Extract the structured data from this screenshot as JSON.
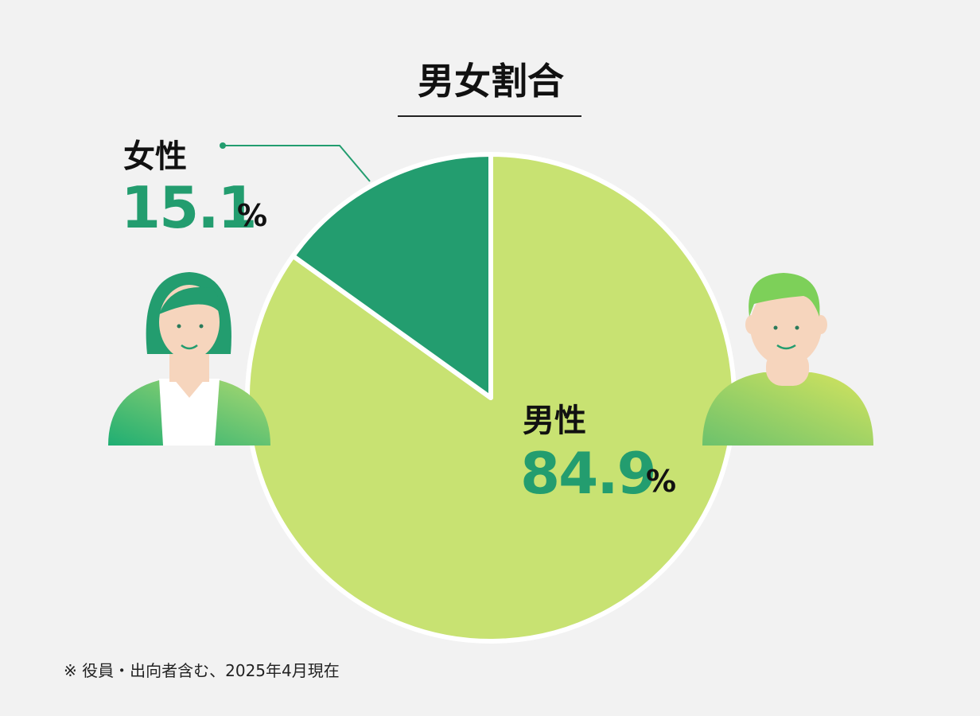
{
  "chart_data": {
    "type": "pie",
    "title": "男女割合",
    "series": [
      {
        "name": "男性",
        "color": "#c8e272",
        "values": [
          84.9
        ]
      },
      {
        "name": "女性",
        "color": "#239d6f",
        "values": [
          15.1
        ]
      }
    ],
    "unit": "%",
    "label_color": "#239d6f",
    "note": "※ 役員・出向者含む、2025年4月現在"
  }
}
